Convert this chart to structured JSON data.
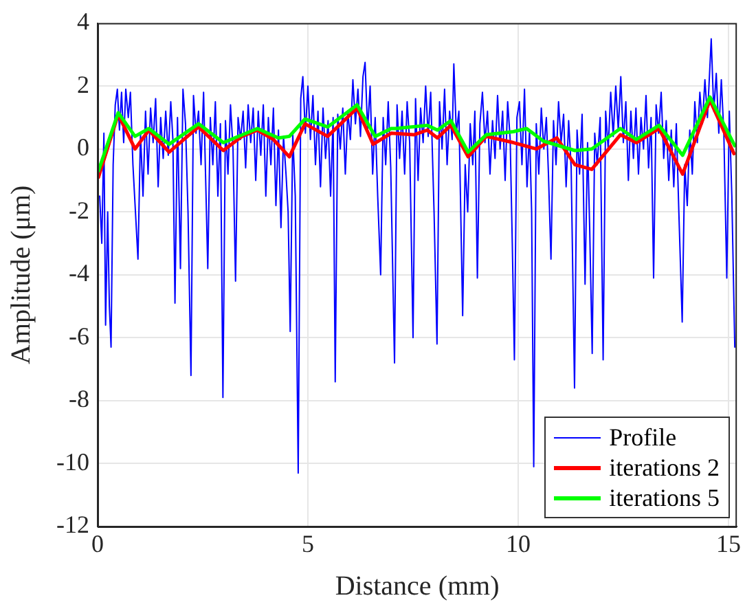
{
  "chart_data": {
    "type": "line",
    "xlabel": "Distance (mm)",
    "ylabel": "Amplitude (μm)",
    "xlim": [
      0,
      15.2
    ],
    "xticks": [
      0,
      5,
      10,
      15
    ],
    "ylim": [
      -12,
      4
    ],
    "yticks": [
      -12,
      -10,
      -8,
      -6,
      -4,
      -2,
      0,
      2,
      4
    ],
    "grid": true,
    "legend": "bottom right",
    "marker": "none",
    "series": [
      {
        "name": "Profile",
        "color": "#0000ff",
        "x": [
          0.05,
          0.1,
          0.15,
          0.19,
          0.24,
          0.28,
          0.32,
          0.37,
          0.42,
          0.47,
          0.52,
          0.57,
          0.62,
          0.67,
          0.73,
          0.78,
          0.84,
          0.9,
          0.96,
          1.02,
          1.08,
          1.14,
          1.2,
          1.26,
          1.32,
          1.38,
          1.44,
          1.5,
          1.56,
          1.62,
          1.68,
          1.74,
          1.79,
          1.84,
          1.9,
          1.97,
          2.03,
          2.09,
          2.15,
          2.22,
          2.28,
          2.34,
          2.4,
          2.46,
          2.52,
          2.57,
          2.62,
          2.68,
          2.74,
          2.8,
          2.86,
          2.92,
          2.98,
          3.04,
          3.1,
          3.16,
          3.22,
          3.28,
          3.34,
          3.4,
          3.46,
          3.52,
          3.58,
          3.64,
          3.7,
          3.76,
          3.82,
          3.88,
          3.94,
          4,
          4.06,
          4.12,
          4.18,
          4.24,
          4.3,
          4.36,
          4.42,
          4.48,
          4.53,
          4.58,
          4.64,
          4.7,
          4.77,
          4.83,
          4.88,
          4.94,
          5,
          5.06,
          5.12,
          5.18,
          5.24,
          5.3,
          5.36,
          5.42,
          5.48,
          5.54,
          5.6,
          5.65,
          5.71,
          5.77,
          5.83,
          5.89,
          5.95,
          6.01,
          6.07,
          6.13,
          6.19,
          6.25,
          6.31,
          6.36,
          6.42,
          6.48,
          6.54,
          6.6,
          6.66,
          6.73,
          6.79,
          6.85,
          6.91,
          6.97,
          7.06,
          7.12,
          7.18,
          7.24,
          7.3,
          7.36,
          7.42,
          7.5,
          7.56,
          7.62,
          7.68,
          7.74,
          7.8,
          7.86,
          7.92,
          8,
          8.07,
          8.13,
          8.19,
          8.25,
          8.31,
          8.37,
          8.43,
          8.47,
          8.53,
          8.59,
          8.68,
          8.74,
          8.8,
          8.86,
          8.92,
          8.97,
          9.03,
          9.09,
          9.15,
          9.21,
          9.27,
          9.33,
          9.39,
          9.45,
          9.51,
          9.57,
          9.63,
          9.69,
          9.75,
          9.81,
          9.86,
          9.91,
          9.97,
          10.03,
          10.09,
          10.15,
          10.21,
          10.27,
          10.32,
          10.37,
          10.43,
          10.49,
          10.55,
          10.61,
          10.67,
          10.72,
          10.78,
          10.84,
          10.9,
          10.96,
          11.02,
          11.08,
          11.14,
          11.2,
          11.26,
          11.34,
          11.4,
          11.46,
          11.52,
          11.59,
          11.65,
          11.7,
          11.76,
          11.82,
          11.88,
          11.95,
          12.02,
          12.08,
          12.14,
          12.2,
          12.26,
          12.32,
          12.38,
          12.44,
          12.5,
          12.56,
          12.62,
          12.68,
          12.74,
          12.8,
          12.86,
          12.92,
          12.98,
          13.04,
          13.1,
          13.16,
          13.22,
          13.28,
          13.34,
          13.4,
          13.46,
          13.52,
          13.58,
          13.64,
          13.7,
          13.76,
          13.82,
          13.9,
          13.96,
          14.02,
          14.08,
          14.14,
          14.2,
          14.26,
          14.32,
          14.38,
          14.44,
          14.5,
          14.59,
          14.65,
          14.71,
          14.77,
          14.83,
          14.89,
          14.96,
          15.02,
          15.08,
          15.15
        ],
        "values": [
          -1.5,
          -3,
          0.5,
          -5.6,
          -2,
          -5,
          -6.3,
          -0.5,
          1.4,
          1.9,
          0.6,
          1.8,
          0.2,
          1.9,
          1,
          1.8,
          -0.5,
          -2,
          -3.5,
          0.5,
          -1.5,
          1.2,
          -0.8,
          1.3,
          0.2,
          1.6,
          -1.2,
          1,
          -0.3,
          1.2,
          -0.2,
          1.5,
          0.3,
          -4.9,
          1,
          -3.8,
          1.9,
          0.8,
          -2,
          -7.2,
          1.7,
          0.5,
          1.2,
          -0.5,
          1.8,
          -1,
          -3.8,
          1,
          -0.5,
          1.5,
          -1.5,
          0.8,
          -7.9,
          0.9,
          -0.8,
          1.4,
          0,
          -4.2,
          1,
          0.3,
          1.2,
          -0.6,
          1.4,
          0.2,
          1.3,
          -1,
          1.2,
          -0.2,
          1.4,
          -1.5,
          1,
          -0.5,
          1.3,
          -1.8,
          0.6,
          -2.5,
          0.4,
          -0.8,
          -2,
          -5.8,
          0.5,
          -1.5,
          -10.3,
          1.6,
          2.3,
          0.5,
          2,
          0.3,
          1.7,
          -0.5,
          1.2,
          -1.2,
          1.3,
          -0.3,
          0.9,
          -1.5,
          1,
          -7.4,
          1.1,
          0,
          1.3,
          -0.8,
          1.2,
          0.3,
          2.2,
          0.8,
          1.9,
          0.4,
          2.3,
          2.75,
          0.6,
          2,
          -0.8,
          1,
          -1.5,
          -4,
          1,
          -0.5,
          1.5,
          -0.6,
          -6.8,
          1.4,
          -0.3,
          1.2,
          -0.8,
          1.5,
          0.2,
          -6,
          1.6,
          -1,
          1.3,
          0.2,
          2,
          0.4,
          1.8,
          -2,
          -6.2,
          1.5,
          0,
          1.9,
          -0.5,
          1.2,
          0.3,
          2.7,
          0.5,
          1.2,
          -5.3,
          -0.5,
          -2,
          0.8,
          -0.5,
          1.2,
          -4.1,
          0.8,
          1.8,
          0.2,
          1.2,
          -0.8,
          0.9,
          -0.3,
          1.7,
          0,
          1.2,
          -1,
          1.5,
          0.3,
          -3,
          -6.7,
          1,
          1.5,
          -0.5,
          1.9,
          -1.2,
          0.6,
          -2,
          -10.1,
          0.8,
          -0.8,
          1.3,
          0,
          1,
          -0.8,
          -3.5,
          0.9,
          -0.5,
          1.5,
          0.2,
          1.1,
          -1.2,
          0.9,
          -0.6,
          -7.6,
          0.6,
          -0.8,
          1.1,
          -4.3,
          0.2,
          -2.5,
          -6.5,
          0.5,
          -0.5,
          1,
          -6.7,
          1.2,
          0,
          1.8,
          0.4,
          2,
          0.6,
          2.3,
          0.2,
          1.5,
          -1,
          1.2,
          -0.3,
          1.3,
          -0.8,
          1,
          0,
          1.7,
          -0.6,
          1,
          -4.1,
          1.4,
          0.5,
          1.8,
          -0.3,
          0.9,
          -1,
          0.6,
          -1.2,
          0.8,
          -2,
          -5.5,
          -0.5,
          -1.8,
          0.6,
          -0.8,
          1.5,
          0.2,
          1.8,
          0.8,
          2.2,
          1,
          3.5,
          1.2,
          2.4,
          0.5,
          2.2,
          0.5,
          -4.1,
          1.2,
          -1.5,
          -6.3
        ]
      },
      {
        "name": "iterations 2",
        "color": "#ff0000",
        "x": [
          0.02,
          0.49,
          0.89,
          1.22,
          1.7,
          2.4,
          2.99,
          3.43,
          3.8,
          4.18,
          4.56,
          4.93,
          5.47,
          6.17,
          6.55,
          6.98,
          7.52,
          7.84,
          8.08,
          8.4,
          8.81,
          9.24,
          9.89,
          10.43,
          10.92,
          11.35,
          11.75,
          12.43,
          12.81,
          13.35,
          13.91,
          14.56,
          15.13
        ],
        "values": [
          -0.9,
          1.1,
          0,
          0.6,
          -0.1,
          0.7,
          -0.05,
          0.4,
          0.6,
          0.3,
          -0.25,
          0.8,
          0.4,
          1.3,
          0.15,
          0.5,
          0.45,
          0.6,
          0.35,
          0.75,
          -0.25,
          0.4,
          0.2,
          0,
          0.35,
          -0.5,
          -0.65,
          0.45,
          0.2,
          0.65,
          -0.8,
          1.55,
          -0.15
        ]
      },
      {
        "name": "iterations 5",
        "color": "#00ff00",
        "x": [
          0.02,
          0.49,
          0.89,
          1.22,
          1.7,
          2.4,
          2.99,
          3.8,
          4.3,
          4.56,
          4.93,
          5.47,
          6.17,
          6.6,
          6.98,
          7.08,
          7.84,
          8.08,
          8.4,
          8.81,
          9.24,
          9.89,
          10.2,
          10.6,
          11.35,
          11.75,
          12.43,
          12.81,
          13.35,
          13.91,
          14.56,
          15.15
        ],
        "values": [
          -0.7,
          1.15,
          0.4,
          0.65,
          0.15,
          0.8,
          0.2,
          0.65,
          0.35,
          0.4,
          0.95,
          0.7,
          1.4,
          0.4,
          0.65,
          0.65,
          0.75,
          0.6,
          0.9,
          -0.1,
          0.45,
          0.55,
          0.65,
          0.25,
          -0.05,
          0,
          0.65,
          0.3,
          0.75,
          -0.2,
          1.65,
          0.1
        ]
      }
    ]
  }
}
